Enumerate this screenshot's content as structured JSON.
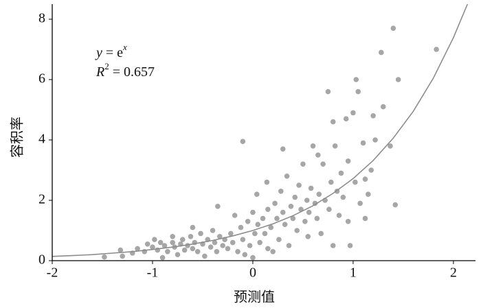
{
  "chart_data": {
    "type": "scatter",
    "x_label": "预测值",
    "y_label": "容积率",
    "equation": {
      "lhs": "y",
      "base": " = e",
      "exp": "x"
    },
    "r2": {
      "lhs": "R",
      "sup": "2",
      "rhs": " = 0.657"
    },
    "color": "#a6a6a6",
    "xlim": [
      -2,
      2.22
    ],
    "ylim": [
      0,
      8.5
    ],
    "xticks": [
      -2,
      -1,
      0,
      1,
      2
    ],
    "yticks": [
      0,
      2,
      4,
      6,
      8
    ],
    "x": [
      -1.48,
      -1.32,
      -1.3,
      -1.2,
      -1.15,
      -1.08,
      -1.05,
      -1.0,
      -0.98,
      -0.95,
      -0.92,
      -0.9,
      -0.88,
      -0.85,
      -0.8,
      -0.78,
      -0.75,
      -0.72,
      -0.7,
      -0.68,
      -0.65,
      -0.62,
      -0.6,
      -0.58,
      -0.55,
      -0.52,
      -0.5,
      -0.48,
      -0.45,
      -0.42,
      -0.4,
      -0.38,
      -0.36,
      -0.35,
      -0.33,
      -0.3,
      -0.28,
      -0.25,
      -0.22,
      -0.2,
      -0.18,
      -0.15,
      -0.12,
      -0.1,
      -0.08,
      -0.05,
      -0.03,
      0.0,
      0.02,
      0.04,
      0.05,
      0.07,
      0.1,
      0.12,
      0.14,
      0.15,
      0.18,
      0.2,
      0.22,
      0.24,
      0.26,
      0.28,
      0.3,
      0.32,
      0.34,
      0.36,
      0.38,
      0.4,
      0.42,
      0.44,
      0.46,
      0.48,
      0.5,
      0.52,
      0.54,
      0.56,
      0.58,
      0.6,
      0.62,
      0.64,
      0.65,
      0.66,
      0.68,
      0.7,
      0.72,
      0.75,
      0.76,
      0.78,
      0.8,
      0.82,
      0.84,
      0.86,
      0.88,
      0.9,
      0.93,
      0.95,
      0.97,
      1.0,
      1.02,
      1.03,
      1.05,
      1.07,
      1.1,
      1.12,
      1.15,
      1.18,
      1.2,
      1.22,
      1.28,
      1.3,
      1.37,
      1.4,
      1.42,
      1.45,
      1.83,
      -0.1,
      0.3,
      0.55,
      0.15,
      -0.6,
      -0.8,
      0.0,
      1.12,
      0.95,
      0.8
    ],
    "values": [
      0.12,
      0.35,
      0.15,
      0.25,
      0.4,
      0.3,
      0.55,
      0.45,
      0.7,
      0.35,
      0.6,
      0.1,
      0.5,
      0.3,
      0.6,
      0.45,
      0.2,
      0.55,
      0.7,
      0.35,
      0.5,
      0.8,
      0.4,
      0.6,
      0.3,
      0.9,
      0.55,
      0.15,
      0.7,
      0.45,
      1.0,
      0.6,
      0.3,
      1.8,
      0.8,
      0.5,
      0.7,
      0.4,
      0.9,
      0.6,
      1.5,
      0.3,
      1.1,
      0.7,
      0.2,
      1.3,
      0.5,
      1.6,
      0.9,
      2.2,
      1.2,
      0.6,
      1.4,
      0.9,
      2.6,
      1.7,
      1.1,
      0.3,
      1.9,
      1.4,
      0.7,
      2.3,
      1.6,
      1.2,
      2.8,
      0.5,
      1.8,
      1.4,
      2.1,
      1.0,
      2.5,
      1.7,
      3.2,
      1.3,
      2.0,
      1.6,
      2.4,
      3.8,
      1.9,
      1.4,
      3.5,
      2.2,
      0.9,
      3.2,
      2.0,
      5.6,
      1.7,
      2.6,
      4.6,
      3.8,
      2.3,
      1.5,
      2.9,
      2.1,
      4.7,
      3.3,
      0.5,
      4.9,
      2.6,
      6.0,
      5.6,
      1.9,
      3.9,
      2.7,
      2.2,
      3.0,
      4.8,
      4.0,
      6.9,
      5.1,
      3.8,
      7.7,
      1.85,
      6.0,
      7.0,
      3.95,
      3.7,
      0.8,
      0.4,
      1.1,
      0.8,
      0.1,
      1.4,
      1.3,
      0.5
    ],
    "fit": {
      "type": "line",
      "color": "#8c8c8c",
      "x": [
        -2,
        -1.8,
        -1.6,
        -1.4,
        -1.2,
        -1,
        -0.8,
        -0.6,
        -0.4,
        -0.2,
        0,
        0.2,
        0.4,
        0.6,
        0.8,
        1,
        1.2,
        1.4,
        1.6,
        1.8,
        2,
        2.14
      ],
      "values": [
        0.14,
        0.17,
        0.2,
        0.25,
        0.3,
        0.37,
        0.45,
        0.55,
        0.67,
        0.82,
        1,
        1.22,
        1.49,
        1.82,
        2.23,
        2.72,
        3.32,
        4.06,
        4.95,
        6.05,
        7.39,
        8.5
      ]
    }
  }
}
